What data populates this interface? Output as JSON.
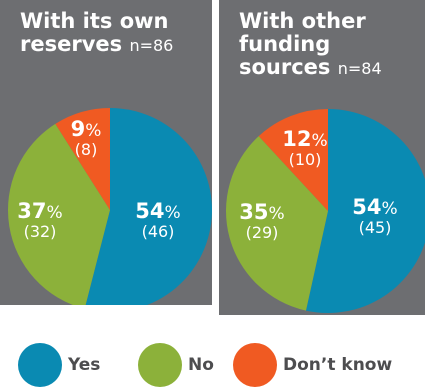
{
  "colors": {
    "yes": "#0a8ab2",
    "no": "#8cb13a",
    "dont_know": "#f05a22",
    "panel": "#6d6e71"
  },
  "chart_data": [
    {
      "type": "pie",
      "title": "With its own reserves",
      "n_label": "n=86",
      "slices": [
        {
          "name": "Yes",
          "percent": 54,
          "count": 46
        },
        {
          "name": "No",
          "percent": 37,
          "count": 32
        },
        {
          "name": "Don’t know",
          "percent": 9,
          "count": 8
        }
      ]
    },
    {
      "type": "pie",
      "title": "With other funding sources",
      "n_label": "n=84",
      "slices": [
        {
          "name": "Yes",
          "percent": 54,
          "count": 45
        },
        {
          "name": "No",
          "percent": 35,
          "count": 29
        },
        {
          "name": "Don’t know",
          "percent": 12,
          "count": 10
        }
      ]
    }
  ],
  "legend": [
    {
      "label": "Yes"
    },
    {
      "label": "No"
    },
    {
      "label": "Don’t know"
    }
  ]
}
